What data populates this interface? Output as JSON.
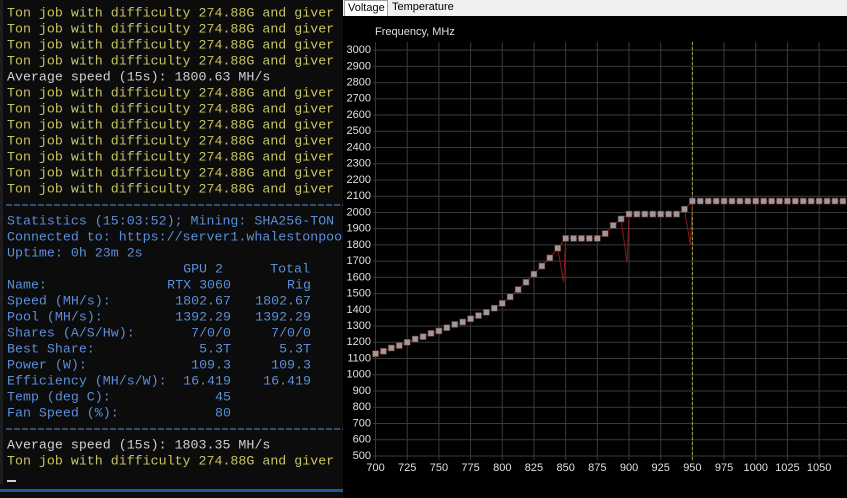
{
  "terminal": {
    "log_top": [
      {
        "text": "Ton job with difficulty 274.88G and giver",
        "color": "#c8c464"
      },
      {
        "text": "Ton job with difficulty 274.88G and giver",
        "color": "#c8c464"
      },
      {
        "text": "Ton job with difficulty 274.88G and giver",
        "color": "#c8c464"
      },
      {
        "text": "Ton job with difficulty 274.88G and giver",
        "color": "#c8c464"
      },
      {
        "text": "Average speed (15s): 1800.63 MH/s",
        "color": "#d0d0d0"
      },
      {
        "text": "Ton job with difficulty 274.88G and giver",
        "color": "#c8c464"
      },
      {
        "text": "Ton job with difficulty 274.88G and giver",
        "color": "#c8c464"
      },
      {
        "text": "Ton job with difficulty 274.88G and giver",
        "color": "#c8c464"
      },
      {
        "text": "Ton job with difficulty 274.88G and giver",
        "color": "#c8c464"
      },
      {
        "text": "Ton job with difficulty 274.88G and giver",
        "color": "#c8c464"
      },
      {
        "text": "Ton job with difficulty 274.88G and giver",
        "color": "#c8c464"
      },
      {
        "text": "Ton job with difficulty 274.88G and giver",
        "color": "#c8c464"
      }
    ],
    "stats": [
      "Statistics (15:03:52); Mining: SHA256-TON",
      "Connected to: https://server1.whalestonpoo",
      "Uptime: 0h 23m 2s"
    ],
    "table": {
      "header": [
        "GPU 2",
        "Total"
      ],
      "rows": [
        [
          "Name:",
          "RTX 3060",
          "Rig"
        ],
        [
          "Speed (MH/s):",
          "1802.67",
          "1802.67"
        ],
        [
          "Pool (MH/s):",
          "1392.29",
          "1392.29"
        ],
        [
          "Shares (A/S/Hw):",
          "7/0/0",
          "7/0/0"
        ],
        [
          "Best Share:",
          "5.3T",
          "5.3T"
        ],
        [
          "Power (W):",
          "109.3",
          "109.3"
        ],
        [
          "Efficiency (MH/s/W):",
          "16.419",
          "16.419"
        ],
        [
          "Temp (deg C):",
          "45",
          ""
        ],
        [
          "Fan Speed (%):",
          "80",
          ""
        ]
      ]
    },
    "log_bottom": [
      {
        "text": "Average speed (15s): 1803.35 MH/s",
        "color": "#d0d0d0"
      },
      {
        "text": "Ton job with difficulty 274.88G and giver",
        "color": "#c8c464"
      }
    ]
  },
  "tabs": [
    "Voltage",
    "Temperature"
  ],
  "chart_data": {
    "type": "scatter",
    "title": "Frequency, MHz",
    "x": [
      700,
      706.25,
      712.5,
      718.75,
      725,
      731.25,
      737.5,
      743.75,
      750,
      756.25,
      762.5,
      768.75,
      775,
      781.25,
      787.5,
      793.75,
      800,
      806.25,
      812.5,
      818.75,
      825,
      831.25,
      837.5,
      843.75,
      850,
      856.25,
      862.5,
      868.75,
      875,
      881.25,
      887.5,
      893.75,
      900,
      906.25,
      912.5,
      918.75,
      925,
      931.25,
      937.5,
      943.75,
      950,
      956.25,
      962.5,
      968.75,
      975,
      981.25,
      987.5,
      993.75,
      1000,
      1006.25,
      1012.5,
      1018.75,
      1025,
      1031.25,
      1037.5,
      1043.75,
      1050,
      1056.25,
      1062.5,
      1068.75
    ],
    "series": [
      {
        "color": "#9a9a9a",
        "values": [
          1130,
          1145,
          1165,
          1180,
          1200,
          1220,
          1235,
          1255,
          1270,
          1290,
          1310,
          1325,
          1345,
          1365,
          1385,
          1410,
          1440,
          1480,
          1525,
          1570,
          1620,
          1670,
          1720,
          1780,
          1840,
          1840,
          1840,
          1840,
          1840,
          1870,
          1920,
          1960,
          1990,
          1990,
          1990,
          1990,
          1990,
          1990,
          1990,
          2020,
          2070,
          2070,
          2070,
          2070,
          2070,
          2070,
          2070,
          2070,
          2070,
          2070,
          2070,
          2070,
          2070,
          2070,
          2070,
          2070,
          2070,
          2070,
          2070,
          2070
        ]
      }
    ],
    "line_color": "#8b1a1a",
    "dips": [
      {
        "x": 850,
        "value": 1570
      },
      {
        "x": 900,
        "value": 1690
      },
      {
        "x": 950,
        "value": 1800
      }
    ],
    "cursor_x": 950,
    "cursor_color": "#a8a832",
    "xlim": [
      698,
      1072
    ],
    "ylim": [
      475,
      3050
    ],
    "xticks": [
      700,
      725,
      750,
      775,
      800,
      825,
      850,
      875,
      900,
      925,
      950,
      975,
      1000,
      1025,
      1050
    ],
    "yticks": [
      500,
      600,
      700,
      800,
      900,
      1000,
      1100,
      1200,
      1300,
      1400,
      1500,
      1600,
      1700,
      1800,
      1900,
      2000,
      2100,
      2200,
      2300,
      2400,
      2500,
      2600,
      2700,
      2800,
      2900,
      3000
    ],
    "grid": true
  }
}
